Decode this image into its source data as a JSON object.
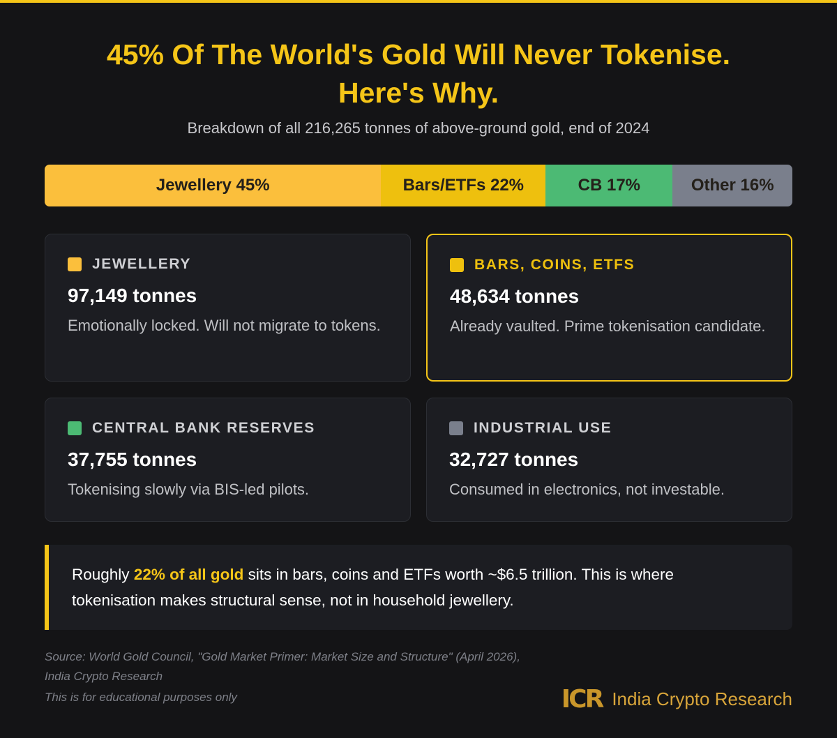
{
  "header": {
    "title_line1": "45% Of The World's Gold Will Never Tokenise.",
    "title_line2": "Here's Why.",
    "subtitle": "Breakdown of all 216,265 tonnes of above-ground gold, end of 2024"
  },
  "bar": {
    "segments": [
      {
        "label": "Jewellery 45%",
        "value": 45,
        "color": "#fbbf3c"
      },
      {
        "label": "Bars/ETFs 22%",
        "value": 22,
        "color": "#eec00e"
      },
      {
        "label": "CB 17%",
        "value": 17,
        "color": "#4cba74"
      },
      {
        "label": "Other 16%",
        "value": 16,
        "color": "#7a7f8c"
      }
    ]
  },
  "cards": [
    {
      "category": "JEWELLERY",
      "amount": "97,149 tonnes",
      "description": "Emotionally locked. Will not migrate to tokens.",
      "color": "#fbbf3c",
      "highlight": false
    },
    {
      "category": "BARS, COINS, ETFS",
      "amount": "48,634 tonnes",
      "description": "Already vaulted. Prime tokenisation candidate.",
      "color": "#eec00e",
      "highlight": true
    },
    {
      "category": "CENTRAL BANK RESERVES",
      "amount": "37,755 tonnes",
      "description": "Tokenising slowly via BIS-led pilots.",
      "color": "#4cba74",
      "highlight": false
    },
    {
      "category": "INDUSTRIAL USE",
      "amount": "32,727 tonnes",
      "description": "Consumed in electronics, not investable.",
      "color": "#7a7f8c",
      "highlight": false
    }
  ],
  "callout": {
    "before": "Roughly ",
    "highlight": "22% of all gold",
    "after": " sits in bars, coins and ETFs worth ~$6.5 trillion. This is where tokenisation makes structural sense, not in household jewellery."
  },
  "footer": {
    "source_line1": "Source: World Gold Council, \"Gold Market Primer: Market Size and Structure\" (April 2026),",
    "source_line2": "India Crypto Research",
    "disclaimer": "This is for educational purposes only"
  },
  "logo": {
    "mark": "ICR",
    "text": "India Crypto Research"
  }
}
